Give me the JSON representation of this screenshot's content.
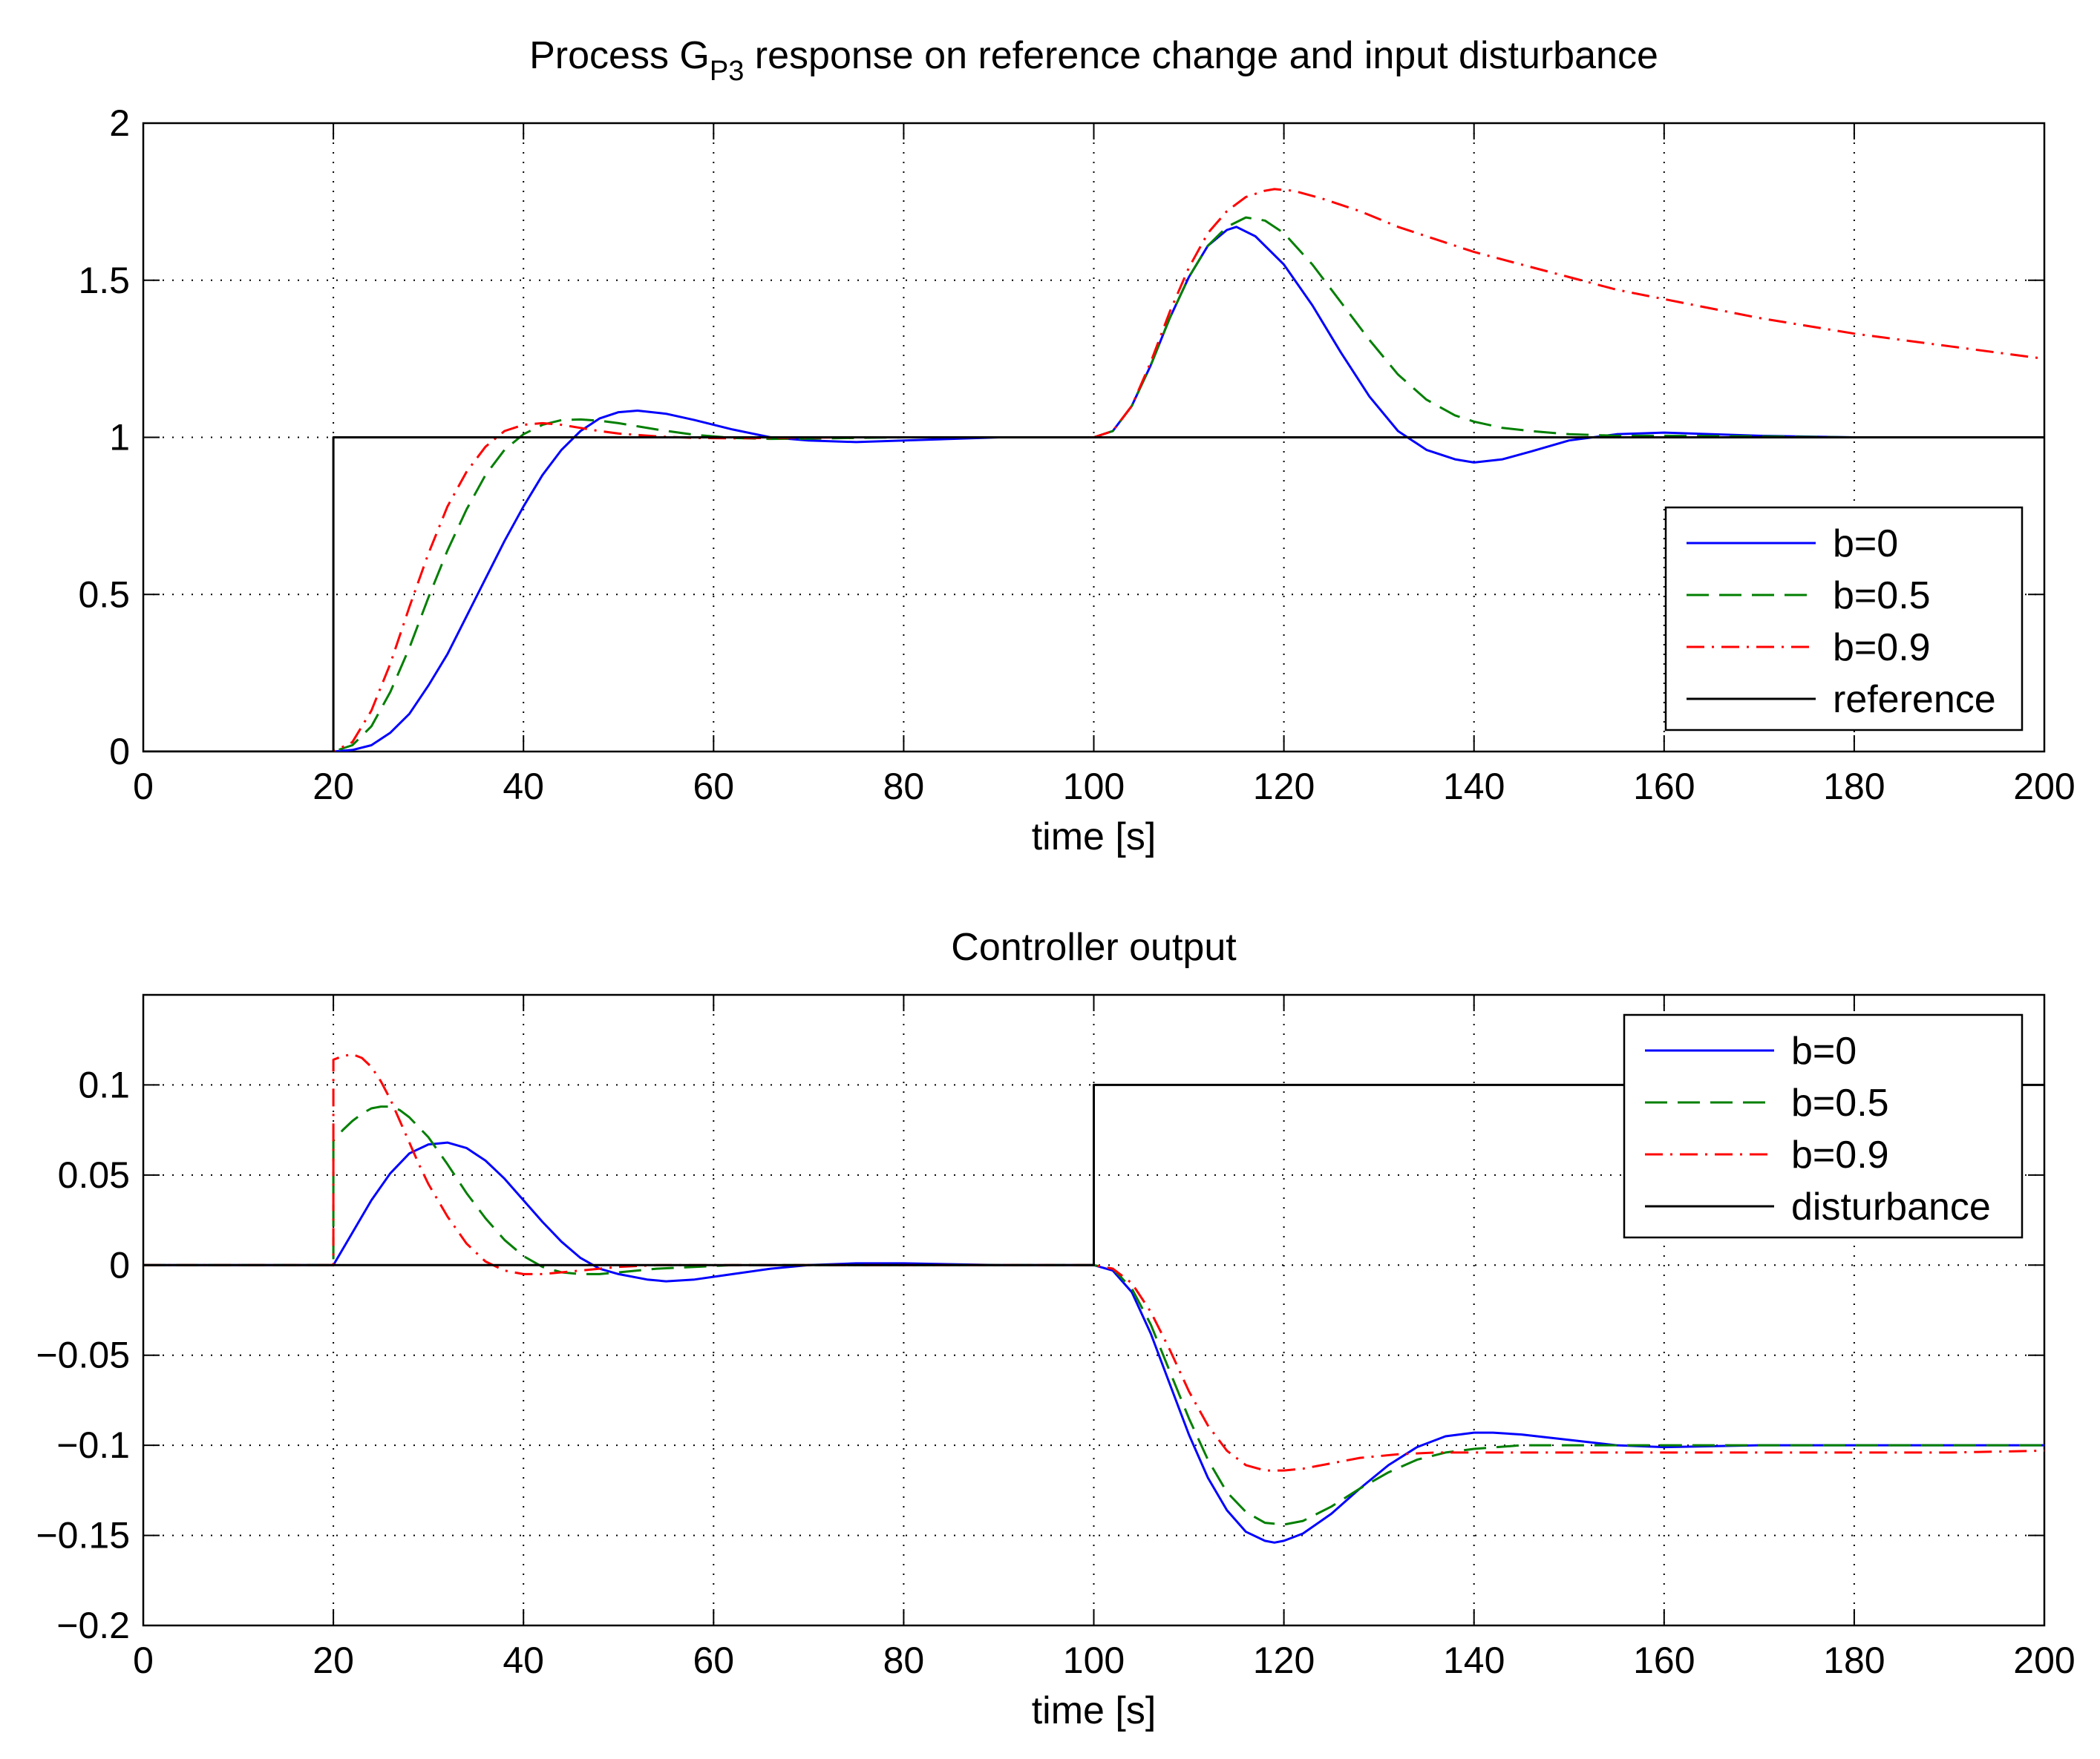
{
  "chart_data": [
    {
      "type": "line",
      "title": "Process G",
      "title_subscript": "P3",
      "title_rest": " response on reference change and input disturbance",
      "xlabel": "time [s]",
      "ylabel": "",
      "xlim": [
        0,
        200
      ],
      "ylim": [
        0,
        2
      ],
      "xticks": [
        0,
        20,
        40,
        60,
        80,
        100,
        120,
        140,
        160,
        180,
        200
      ],
      "yticks": [
        0,
        0.5,
        1,
        1.5,
        2
      ],
      "xtick_labels": [
        "0",
        "20",
        "40",
        "60",
        "80",
        "100",
        "120",
        "140",
        "160",
        "180",
        "200"
      ],
      "ytick_labels": [
        "0",
        "0.5",
        "1",
        "1.5",
        "2"
      ],
      "grid": true,
      "legend_position": "bottom-right",
      "series": [
        {
          "name": "b=0",
          "color": "#0000ff",
          "dash": "solid",
          "x": [
            0,
            20,
            22,
            24,
            26,
            28,
            30,
            32,
            34,
            36,
            38,
            40,
            42,
            44,
            46,
            48,
            50,
            52,
            55,
            58,
            62,
            66,
            70,
            75,
            80,
            85,
            90,
            95,
            100,
            102,
            104,
            106,
            108,
            110,
            112,
            114,
            115,
            117,
            120,
            123,
            126,
            129,
            132,
            135,
            138,
            140,
            143,
            146,
            150,
            155,
            160,
            165,
            170,
            180,
            190,
            200
          ],
          "y": [
            0,
            0,
            0.005,
            0.02,
            0.06,
            0.12,
            0.21,
            0.31,
            0.43,
            0.55,
            0.67,
            0.78,
            0.88,
            0.96,
            1.02,
            1.06,
            1.08,
            1.085,
            1.075,
            1.055,
            1.025,
            1.0,
            0.99,
            0.985,
            0.99,
            0.995,
            1.0,
            1.0,
            1.0,
            1.02,
            1.1,
            1.23,
            1.38,
            1.51,
            1.61,
            1.66,
            1.67,
            1.64,
            1.55,
            1.42,
            1.27,
            1.13,
            1.02,
            0.96,
            0.93,
            0.92,
            0.93,
            0.955,
            0.99,
            1.01,
            1.015,
            1.01,
            1.005,
            1.0,
            1.0,
            1.0
          ]
        },
        {
          "name": "b=0.5",
          "color": "#007f00",
          "dash": "long-dash",
          "x": [
            0,
            20,
            22,
            24,
            26,
            28,
            30,
            32,
            34,
            36,
            38,
            40,
            42,
            44,
            46,
            48,
            50,
            54,
            58,
            62,
            66,
            70,
            75,
            80,
            90,
            100,
            102,
            104,
            106,
            108,
            110,
            112,
            114,
            116,
            118,
            120,
            123,
            126,
            129,
            132,
            135,
            138,
            140,
            143,
            146,
            150,
            155,
            160,
            170,
            180,
            190,
            200
          ],
          "y": [
            0,
            0,
            0.02,
            0.08,
            0.19,
            0.33,
            0.49,
            0.64,
            0.77,
            0.88,
            0.96,
            1.01,
            1.04,
            1.055,
            1.057,
            1.053,
            1.045,
            1.025,
            1.008,
            0.998,
            0.995,
            0.996,
            0.998,
            1.0,
            1.0,
            1.0,
            1.02,
            1.1,
            1.23,
            1.38,
            1.51,
            1.61,
            1.67,
            1.7,
            1.69,
            1.65,
            1.55,
            1.43,
            1.31,
            1.2,
            1.12,
            1.07,
            1.05,
            1.03,
            1.02,
            1.01,
            1.005,
            1.005,
            1.003,
            1.0,
            1.0,
            1.0
          ]
        },
        {
          "name": "b=0.9",
          "color": "#ff0000",
          "dash": "dash-dot",
          "x": [
            0,
            20,
            22,
            24,
            26,
            28,
            30,
            32,
            34,
            36,
            38,
            40,
            42,
            44,
            46,
            48,
            50,
            54,
            58,
            62,
            66,
            70,
            75,
            80,
            90,
            100,
            102,
            104,
            106,
            108,
            110,
            112,
            114,
            116,
            118,
            119,
            121,
            124,
            128,
            132,
            136,
            140,
            145,
            150,
            155,
            160,
            170,
            180,
            190,
            200
          ],
          "y": [
            0,
            0,
            0.03,
            0.13,
            0.28,
            0.46,
            0.63,
            0.78,
            0.89,
            0.97,
            1.02,
            1.04,
            1.045,
            1.04,
            1.03,
            1.02,
            1.012,
            1.003,
            0.998,
            0.997,
            0.998,
            0.999,
            1.0,
            1.0,
            1.0,
            1.0,
            1.02,
            1.1,
            1.24,
            1.4,
            1.54,
            1.65,
            1.72,
            1.765,
            1.785,
            1.79,
            1.785,
            1.76,
            1.72,
            1.67,
            1.63,
            1.59,
            1.55,
            1.51,
            1.47,
            1.44,
            1.38,
            1.33,
            1.29,
            1.25
          ]
        },
        {
          "name": "reference",
          "color": "#000000",
          "dash": "solid",
          "x": [
            0,
            20,
            20,
            200
          ],
          "y": [
            0,
            0,
            1,
            1
          ]
        }
      ]
    },
    {
      "type": "line",
      "title": "Controller output",
      "xlabel": "time [s]",
      "ylabel": "",
      "xlim": [
        0,
        200
      ],
      "ylim": [
        -0.2,
        0.15
      ],
      "xticks": [
        0,
        20,
        40,
        60,
        80,
        100,
        120,
        140,
        160,
        180,
        200
      ],
      "yticks": [
        -0.2,
        -0.15,
        -0.1,
        -0.05,
        0,
        0.05,
        0.1
      ],
      "xtick_labels": [
        "0",
        "20",
        "40",
        "60",
        "80",
        "100",
        "120",
        "140",
        "160",
        "180",
        "200"
      ],
      "ytick_labels": [
        "−0.2",
        "−0.15",
        "−0.1",
        "−0.05",
        "0",
        "0.05",
        "0.1"
      ],
      "grid": true,
      "legend_position": "top-right",
      "series": [
        {
          "name": "b=0",
          "color": "#0000ff",
          "dash": "solid",
          "x": [
            0,
            20,
            22,
            24,
            26,
            28,
            30,
            32,
            34,
            36,
            38,
            40,
            42,
            44,
            46,
            48,
            50,
            53,
            55,
            58,
            62,
            66,
            70,
            75,
            80,
            90,
            100,
            102,
            104,
            106,
            108,
            110,
            112,
            114,
            116,
            118,
            119,
            120,
            122,
            125,
            128,
            131,
            134,
            137,
            140,
            142,
            145,
            150,
            155,
            160,
            170,
            180,
            190,
            200
          ],
          "y": [
            0,
            0,
            0.018,
            0.036,
            0.051,
            0.062,
            0.067,
            0.068,
            0.065,
            0.058,
            0.048,
            0.036,
            0.024,
            0.013,
            0.004,
            -0.002,
            -0.005,
            -0.008,
            -0.009,
            -0.008,
            -0.005,
            -0.002,
            0.0,
            0.001,
            0.001,
            0.0,
            0.0,
            -0.003,
            -0.015,
            -0.038,
            -0.066,
            -0.094,
            -0.118,
            -0.136,
            -0.148,
            -0.153,
            -0.154,
            -0.153,
            -0.149,
            -0.138,
            -0.124,
            -0.111,
            -0.101,
            -0.095,
            -0.093,
            -0.093,
            -0.094,
            -0.097,
            -0.1,
            -0.101,
            -0.1,
            -0.1,
            -0.1,
            -0.1
          ]
        },
        {
          "name": "b=0.5",
          "color": "#007f00",
          "dash": "long-dash",
          "x": [
            0,
            20,
            20,
            21,
            22,
            23,
            24,
            25,
            26,
            27,
            28,
            30,
            32,
            34,
            36,
            38,
            40,
            42,
            44,
            46,
            48,
            50,
            54,
            58,
            62,
            66,
            70,
            75,
            80,
            90,
            100,
            102,
            104,
            106,
            108,
            110,
            112,
            114,
            116,
            118,
            120,
            122,
            125,
            128,
            131,
            134,
            137,
            140,
            145,
            150,
            155,
            160,
            170,
            180,
            190,
            200
          ],
          "y": [
            0,
            0,
            0.069,
            0.075,
            0.08,
            0.084,
            0.087,
            0.088,
            0.088,
            0.086,
            0.082,
            0.071,
            0.056,
            0.04,
            0.026,
            0.014,
            0.005,
            -0.001,
            -0.004,
            -0.005,
            -0.005,
            -0.004,
            -0.002,
            -0.001,
            0.0,
            0.0,
            0.0,
            0.0,
            0.0,
            0.0,
            0.0,
            -0.002,
            -0.013,
            -0.033,
            -0.059,
            -0.085,
            -0.108,
            -0.126,
            -0.137,
            -0.143,
            -0.144,
            -0.142,
            -0.134,
            -0.124,
            -0.115,
            -0.108,
            -0.104,
            -0.102,
            -0.1,
            -0.1,
            -0.1,
            -0.1,
            -0.1,
            -0.1,
            -0.1,
            -0.1
          ]
        },
        {
          "name": "b=0.9",
          "color": "#ff0000",
          "dash": "dash-dot",
          "x": [
            0,
            20,
            20,
            21,
            22,
            23,
            24,
            25,
            26,
            27,
            28,
            29,
            30,
            32,
            34,
            36,
            38,
            40,
            42,
            44,
            46,
            48,
            50,
            54,
            58,
            62,
            66,
            70,
            75,
            80,
            90,
            100,
            102,
            104,
            106,
            108,
            110,
            112,
            114,
            116,
            118,
            120,
            122,
            125,
            128,
            132,
            136,
            140,
            145,
            150,
            155,
            160,
            170,
            180,
            190,
            200
          ],
          "y": [
            0,
            0,
            0.114,
            0.116,
            0.117,
            0.115,
            0.11,
            0.102,
            0.092,
            0.08,
            0.068,
            0.056,
            0.045,
            0.027,
            0.012,
            0.002,
            -0.003,
            -0.005,
            -0.005,
            -0.004,
            -0.003,
            -0.002,
            -0.001,
            0.0,
            0.0,
            0.0,
            0.0,
            0.0,
            0.0,
            0.0,
            0.0,
            0.0,
            -0.002,
            -0.01,
            -0.026,
            -0.047,
            -0.07,
            -0.089,
            -0.103,
            -0.111,
            -0.114,
            -0.114,
            -0.113,
            -0.11,
            -0.107,
            -0.105,
            -0.104,
            -0.104,
            -0.104,
            -0.104,
            -0.104,
            -0.104,
            -0.104,
            -0.104,
            -0.104,
            -0.103
          ]
        },
        {
          "name": "disturbance",
          "color": "#000000",
          "dash": "solid",
          "x": [
            0,
            100,
            100,
            200
          ],
          "y": [
            0,
            0,
            0.1,
            0.1
          ]
        }
      ]
    }
  ]
}
